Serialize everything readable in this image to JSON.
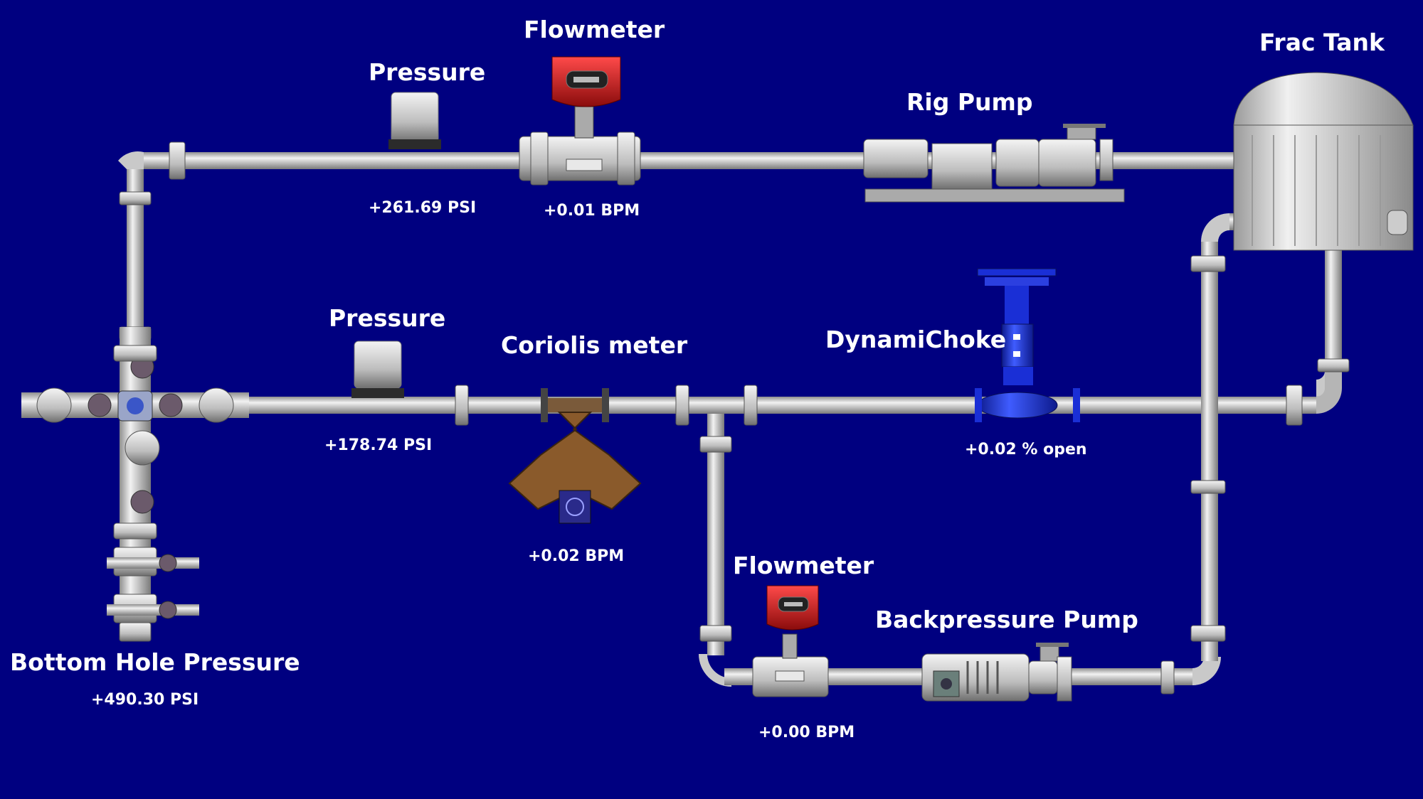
{
  "labels": {
    "flowmeter_top": "Flowmeter",
    "pressure_top": "Pressure",
    "rig_pump": "Rig Pump",
    "frac_tank": "Frac Tank",
    "pressure_mid": "Pressure",
    "coriolis_meter": "Coriolis meter",
    "dynamichoke": "DynamiChoke",
    "flowmeter_bottom": "Flowmeter",
    "backpressure_pump": "Backpressure Pump",
    "bottom_hole_pressure": "Bottom Hole Pressure"
  },
  "readings": {
    "pressure_top": "+261.69 PSI",
    "flowmeter_top": "+0.01 BPM",
    "pressure_mid": "+178.74 PSI",
    "coriolis": "+0.02 BPM",
    "dynamichoke": "+0.02 % open",
    "flowmeter_bottom": "+0.00 BPM",
    "bottom_hole_pressure": "+490.30 PSI"
  },
  "colors": {
    "background": "#000080",
    "pipe": "#c8c8c8",
    "flowmeter_head": "#cc1a1a",
    "choke": "#1a2fd6",
    "coriolis": "#8a5a2b"
  }
}
